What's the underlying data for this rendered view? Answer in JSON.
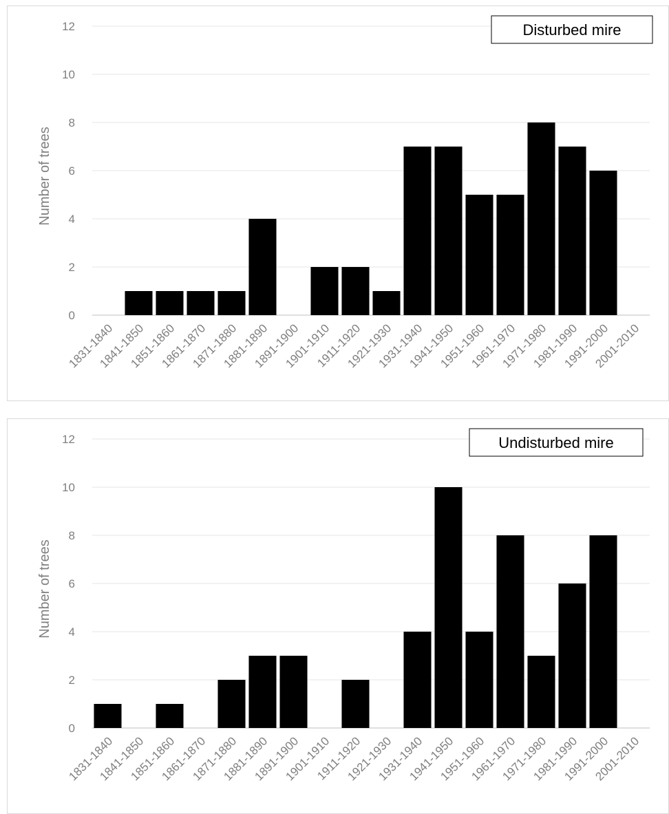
{
  "chart_data": [
    {
      "type": "bar",
      "title": "",
      "legend_label": "Disturbed mire",
      "legend_position": "top-right",
      "xlabel": "",
      "ylabel": "Number of trees",
      "ylim": [
        0,
        12
      ],
      "yticks": [
        0,
        2,
        4,
        6,
        8,
        10,
        12
      ],
      "grid": true,
      "bar_color": "#000000",
      "categories": [
        "1831-1840",
        "1841-1850",
        "1851-1860",
        "1861-1870",
        "1871-1880",
        "1881-1890",
        "1891-1900",
        "1901-1910",
        "1911-1920",
        "1921-1930",
        "1931-1940",
        "1941-1950",
        "1951-1960",
        "1961-1970",
        "1971-1980",
        "1981-1990",
        "1991-2000",
        "2001-2010"
      ],
      "values": [
        0,
        1,
        1,
        1,
        1,
        4,
        0,
        2,
        2,
        1,
        7,
        7,
        5,
        5,
        8,
        7,
        6,
        0
      ]
    },
    {
      "type": "bar",
      "title": "",
      "legend_label": "Undisturbed mire",
      "legend_position": "top-right",
      "xlabel": "",
      "ylabel": "Number of trees",
      "ylim": [
        0,
        12
      ],
      "yticks": [
        0,
        2,
        4,
        6,
        8,
        10,
        12
      ],
      "grid": true,
      "bar_color": "#000000",
      "categories": [
        "1831-1840",
        "1841-1850",
        "1851-1860",
        "1861-1870",
        "1871-1880",
        "1881-1890",
        "1891-1900",
        "1901-1910",
        "1911-1920",
        "1921-1930",
        "1931-1940",
        "1941-1950",
        "1951-1960",
        "1961-1970",
        "1971-1980",
        "1981-1990",
        "1991-2000",
        "2001-2010"
      ],
      "values": [
        1,
        0,
        1,
        0,
        2,
        3,
        3,
        0,
        2,
        0,
        4,
        10,
        4,
        8,
        3,
        6,
        8,
        0
      ]
    }
  ]
}
